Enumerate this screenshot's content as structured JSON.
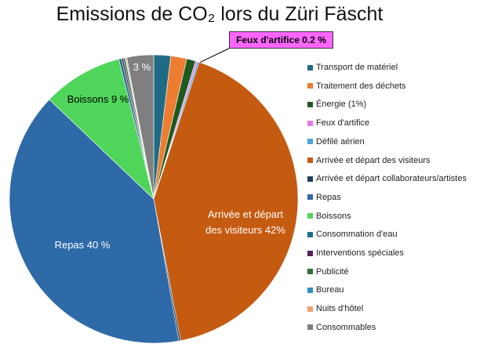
{
  "chart_data": {
    "type": "pie",
    "title": "Emissions de CO₂ lors du Züri Fäscht",
    "categories": [
      "Transport de matériel",
      "Traitement des déchets",
      "Énergie (1%)",
      "Feux d'artifice",
      "Défilé aérien",
      "Arrivée et départ des visiteurs",
      "Arrivée et départ collaborateurs/artistes",
      "Repas",
      "Boissons",
      "Consommation d'eau",
      "Interventions spéciales",
      "Publicité",
      "Bureau",
      "Nuits d'hôtel",
      "Consommables"
    ],
    "values": [
      1.9,
      1.8,
      1,
      0.2,
      0.2,
      42,
      0.2,
      40,
      9,
      0.3,
      0.2,
      0.2,
      0.1,
      0.1,
      3
    ],
    "value_labels": [
      null,
      null,
      null,
      "Feux d'artifice 0.2 %",
      null,
      "Arrivée et départ\ndes visiteurs 42%",
      null,
      "Repas 40 %",
      "Boissons 9 %",
      null,
      null,
      null,
      null,
      null,
      "3 %"
    ],
    "colors": [
      "#1f6b85",
      "#ed7d31",
      "#1e5a1e",
      "#e879e8",
      "#4aa3df",
      "#c55a11",
      "#1f3f5a",
      "#2e6aa8",
      "#4fd65a",
      "#1a6e8c",
      "#5a1f5a",
      "#2f6e2f",
      "#2f8fc4",
      "#f4a070",
      "#7f7f7f"
    ],
    "legend": "right"
  }
}
